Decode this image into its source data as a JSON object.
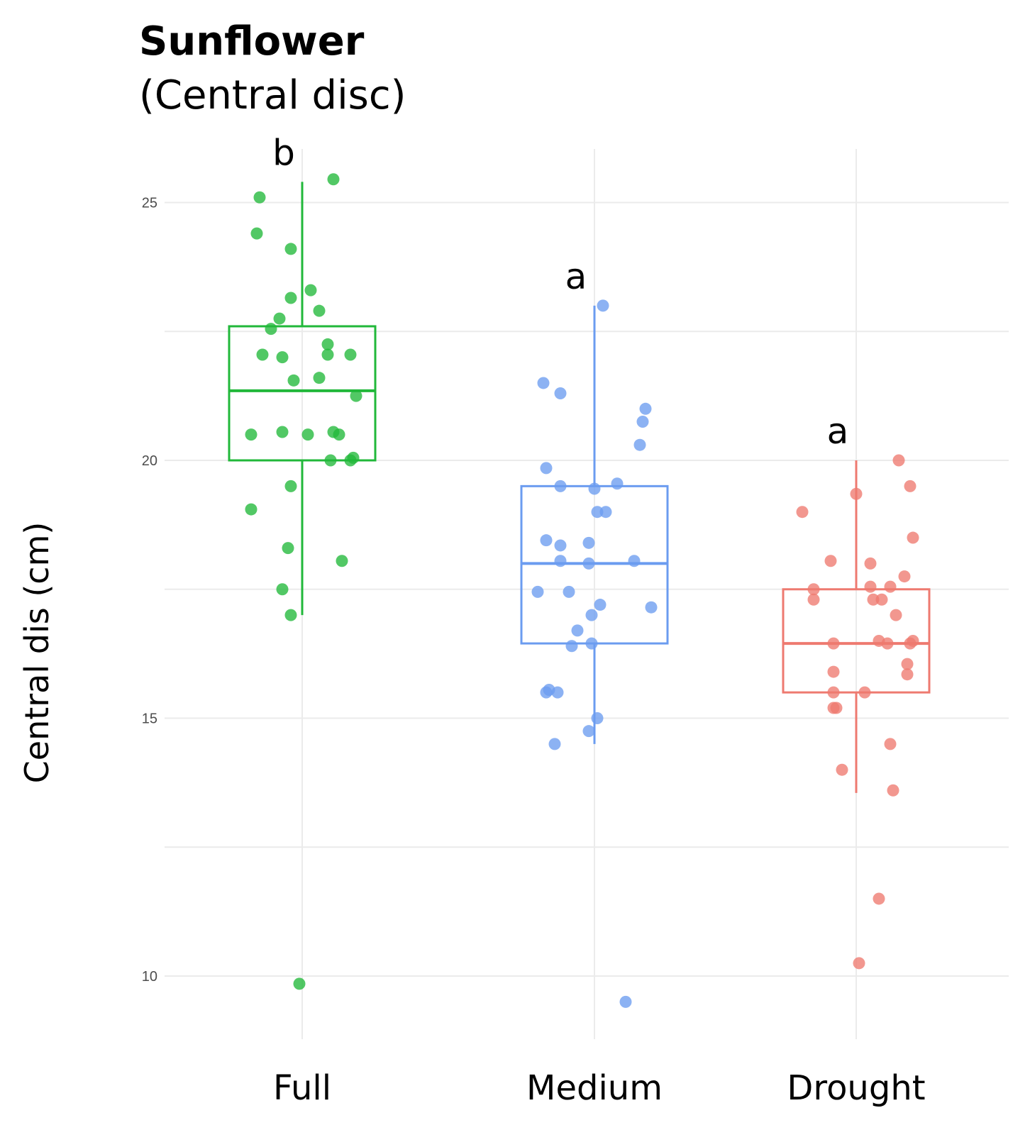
{
  "chart_data": {
    "type": "box",
    "title": "Sunflower",
    "subtitle": "(Central disc)",
    "ylabel": "Central dis (cm)",
    "xlabel": "",
    "ylim": [
      8.7,
      26.5
    ],
    "yticks": [
      10,
      15,
      20,
      25
    ],
    "grid": true,
    "categories": [
      "Full",
      "Medium",
      "Drought"
    ],
    "colors": [
      "#21b83a",
      "#6b9cf0",
      "#ee7a70"
    ],
    "significance_letters": [
      "b",
      "a",
      "a"
    ],
    "boxes": [
      {
        "name": "Full",
        "whisker_low": 17.0,
        "q1": 20.0,
        "median": 21.35,
        "q3": 22.6,
        "whisker_high": 25.4
      },
      {
        "name": "Medium",
        "whisker_low": 14.5,
        "q1": 16.45,
        "median": 18.0,
        "q3": 19.5,
        "whisker_high": 23.0
      },
      {
        "name": "Drought",
        "whisker_low": 13.55,
        "q1": 15.5,
        "median": 16.45,
        "q3": 17.5,
        "whisker_high": 20.0
      }
    ],
    "points": [
      [
        {
          "x": -0.15,
          "y": 25.1
        },
        {
          "x": 0.11,
          "y": 25.45
        },
        {
          "x": -0.16,
          "y": 24.4
        },
        {
          "x": -0.04,
          "y": 24.1
        },
        {
          "x": -0.04,
          "y": 23.15
        },
        {
          "x": 0.03,
          "y": 23.3
        },
        {
          "x": 0.06,
          "y": 22.9
        },
        {
          "x": -0.08,
          "y": 22.75
        },
        {
          "x": -0.11,
          "y": 22.55
        },
        {
          "x": 0.09,
          "y": 22.25
        },
        {
          "x": -0.14,
          "y": 22.05
        },
        {
          "x": -0.07,
          "y": 22.0
        },
        {
          "x": 0.09,
          "y": 22.05
        },
        {
          "x": 0.17,
          "y": 22.05
        },
        {
          "x": -0.03,
          "y": 21.55
        },
        {
          "x": 0.06,
          "y": 21.6
        },
        {
          "x": 0.19,
          "y": 21.25
        },
        {
          "x": -0.18,
          "y": 20.5
        },
        {
          "x": -0.07,
          "y": 20.55
        },
        {
          "x": 0.02,
          "y": 20.5
        },
        {
          "x": 0.11,
          "y": 20.55
        },
        {
          "x": 0.13,
          "y": 20.5
        },
        {
          "x": 0.1,
          "y": 20.0
        },
        {
          "x": 0.17,
          "y": 20.0
        },
        {
          "x": 0.18,
          "y": 20.05
        },
        {
          "x": -0.04,
          "y": 19.5
        },
        {
          "x": -0.18,
          "y": 19.05
        },
        {
          "x": -0.05,
          "y": 18.3
        },
        {
          "x": 0.14,
          "y": 18.05
        },
        {
          "x": -0.07,
          "y": 17.5
        },
        {
          "x": -0.04,
          "y": 17.0
        },
        {
          "x": -0.01,
          "y": 9.85
        }
      ],
      [
        {
          "x": 0.03,
          "y": 23.0
        },
        {
          "x": -0.18,
          "y": 21.5
        },
        {
          "x": -0.12,
          "y": 21.3
        },
        {
          "x": 0.18,
          "y": 21.0
        },
        {
          "x": 0.17,
          "y": 20.75
        },
        {
          "x": 0.16,
          "y": 20.3
        },
        {
          "x": -0.17,
          "y": 19.85
        },
        {
          "x": -0.12,
          "y": 19.5
        },
        {
          "x": 0.0,
          "y": 19.45
        },
        {
          "x": 0.08,
          "y": 19.55
        },
        {
          "x": 0.01,
          "y": 19.0
        },
        {
          "x": 0.04,
          "y": 19.0
        },
        {
          "x": -0.17,
          "y": 18.45
        },
        {
          "x": -0.12,
          "y": 18.35
        },
        {
          "x": -0.02,
          "y": 18.4
        },
        {
          "x": -0.12,
          "y": 18.05
        },
        {
          "x": -0.02,
          "y": 18.0
        },
        {
          "x": 0.14,
          "y": 18.05
        },
        {
          "x": -0.2,
          "y": 17.45
        },
        {
          "x": -0.09,
          "y": 17.45
        },
        {
          "x": 0.02,
          "y": 17.2
        },
        {
          "x": 0.2,
          "y": 17.15
        },
        {
          "x": -0.01,
          "y": 17.0
        },
        {
          "x": -0.06,
          "y": 16.7
        },
        {
          "x": -0.08,
          "y": 16.4
        },
        {
          "x": -0.01,
          "y": 16.45
        },
        {
          "x": -0.17,
          "y": 15.5
        },
        {
          "x": -0.16,
          "y": 15.55
        },
        {
          "x": -0.13,
          "y": 15.5
        },
        {
          "x": 0.01,
          "y": 15.0
        },
        {
          "x": -0.02,
          "y": 14.75
        },
        {
          "x": -0.14,
          "y": 14.5
        },
        {
          "x": 0.11,
          "y": 9.5
        }
      ],
      [
        {
          "x": 0.15,
          "y": 20.0
        },
        {
          "x": 0.19,
          "y": 19.5
        },
        {
          "x": 0.0,
          "y": 19.35
        },
        {
          "x": -0.19,
          "y": 19.0
        },
        {
          "x": 0.2,
          "y": 18.5
        },
        {
          "x": -0.09,
          "y": 18.05
        },
        {
          "x": 0.05,
          "y": 18.0
        },
        {
          "x": 0.17,
          "y": 17.75
        },
        {
          "x": -0.15,
          "y": 17.5
        },
        {
          "x": 0.05,
          "y": 17.55
        },
        {
          "x": 0.12,
          "y": 17.55
        },
        {
          "x": -0.15,
          "y": 17.3
        },
        {
          "x": 0.06,
          "y": 17.3
        },
        {
          "x": 0.09,
          "y": 17.3
        },
        {
          "x": 0.14,
          "y": 17.0
        },
        {
          "x": -0.08,
          "y": 16.45
        },
        {
          "x": 0.08,
          "y": 16.5
        },
        {
          "x": 0.11,
          "y": 16.45
        },
        {
          "x": 0.19,
          "y": 16.45
        },
        {
          "x": 0.2,
          "y": 16.5
        },
        {
          "x": 0.18,
          "y": 16.05
        },
        {
          "x": 0.18,
          "y": 15.85
        },
        {
          "x": -0.08,
          "y": 15.9
        },
        {
          "x": -0.08,
          "y": 15.5
        },
        {
          "x": 0.03,
          "y": 15.5
        },
        {
          "x": -0.07,
          "y": 15.2
        },
        {
          "x": -0.08,
          "y": 15.2
        },
        {
          "x": -0.05,
          "y": 14.0
        },
        {
          "x": 0.12,
          "y": 14.5
        },
        {
          "x": 0.13,
          "y": 13.6
        },
        {
          "x": 0.08,
          "y": 11.5
        },
        {
          "x": 0.01,
          "y": 10.25
        }
      ]
    ]
  }
}
